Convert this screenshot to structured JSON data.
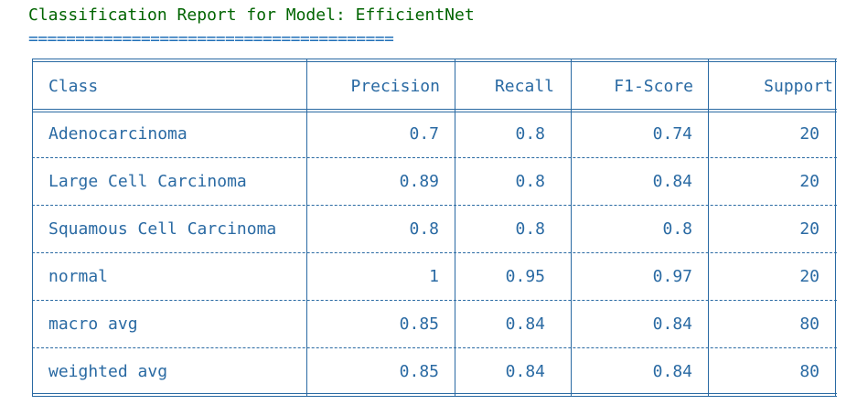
{
  "report": {
    "title": "Classification Report for Model: EfficientNet",
    "underline": "======================================="
  },
  "table": {
    "headers": {
      "class": "Class",
      "precision": "Precision",
      "recall": "Recall",
      "f1": "F1-Score",
      "support": "Support"
    },
    "rows": [
      {
        "class": "Adenocarcinoma",
        "precision": "0.7",
        "recall": "0.8",
        "f1": "0.74",
        "support": "20"
      },
      {
        "class": "Large Cell Carcinoma",
        "precision": "0.89",
        "recall": "0.8",
        "f1": "0.84",
        "support": "20"
      },
      {
        "class": "Squamous Cell Carcinoma",
        "precision": "0.8",
        "recall": "0.8",
        "f1": "0.8",
        "support": "20"
      },
      {
        "class": "normal",
        "precision": "1",
        "recall": "0.95",
        "f1": "0.97",
        "support": "20"
      },
      {
        "class": "macro avg",
        "precision": "0.85",
        "recall": "0.84",
        "f1": "0.84",
        "support": "80"
      },
      {
        "class": "weighted avg",
        "precision": "0.85",
        "recall": "0.84",
        "f1": "0.84",
        "support": "80"
      }
    ]
  },
  "colors": {
    "title": "#006400",
    "table": "#2a6aa3"
  }
}
